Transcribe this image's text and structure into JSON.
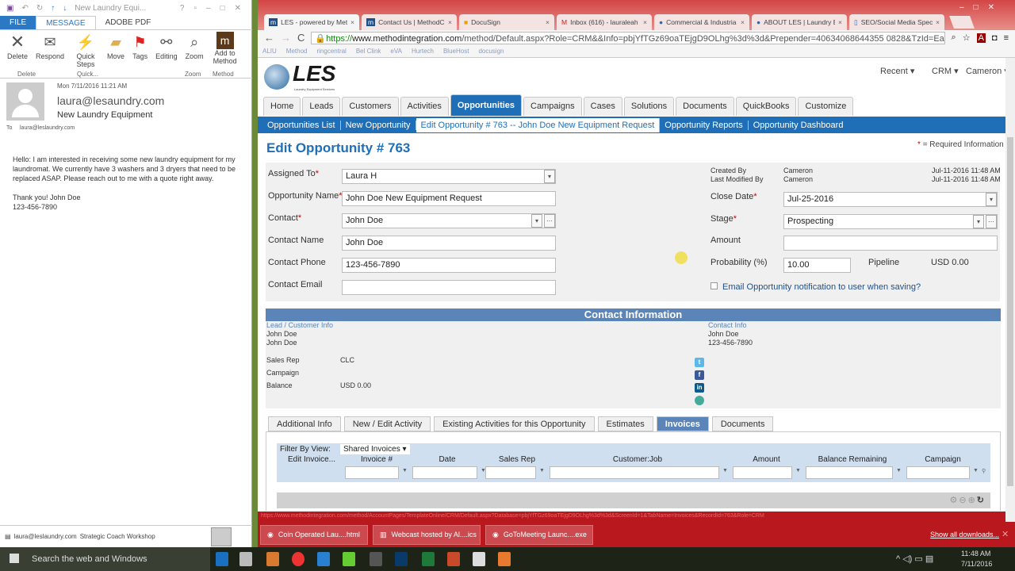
{
  "outlook": {
    "title": "New Laundry Equi...",
    "tabs": [
      "FILE",
      "MESSAGE",
      "ADOBE PDF"
    ],
    "ribbon": [
      {
        "label": "Delete",
        "icon": "delete-x-icon"
      },
      {
        "label": "Respond",
        "icon": "respond-icon"
      },
      {
        "label": "Quick Steps",
        "icon": "lightning-icon"
      },
      {
        "label": "Move",
        "icon": "folder-icon"
      },
      {
        "label": "Tags",
        "icon": "flag-icon"
      },
      {
        "label": "Editing",
        "icon": "binoculars-icon"
      },
      {
        "label": "Zoom",
        "icon": "magnifier-icon"
      },
      {
        "label": "Add to Method",
        "icon": "method-logo-icon"
      }
    ],
    "groups": [
      "Delete",
      "Quick...",
      "Zoom",
      "Method"
    ],
    "date": "Mon 7/11/2016 11:21 AM",
    "from": "laura@lesaundry.com",
    "subject": "New Laundry Equipment",
    "to_label": "To",
    "to": "laura@leslaundry.com",
    "body": "Hello: I am interested in receiving some new laundry equipment for my laundromat. We currently have 3 washers and 3 dryers that need to be replaced ASAP. Please reach out to me with a quote right away.\n\nThank you! John Doe\n123-456-7890",
    "footer_email": "laura@leslaundry.com",
    "footer_text": "Strategic Coach Workshop"
  },
  "browser": {
    "tabs": [
      "LES - powered by Meth",
      "Contact Us | MethodCR",
      "DocuSign",
      "Inbox (616) - lauraleah",
      "Commercial & Industria",
      "ABOUT LES | Laundry Eq",
      "SEO/Social Media Spec"
    ],
    "url_scheme": "https://",
    "url_domain": "www.methodintegration.com",
    "url_path": "/method/Default.aspx?Role=CRM&&Info=pbjYfTGz69oaTEjgD9OLhg%3d%3d&Prepender=40634068644355 0828&TzId=Eastern",
    "bookmarks": [
      "ALIU",
      "Method",
      "ringcentral",
      "Bel Clink",
      "eVA",
      "Hurtech",
      "BlueHost",
      "docusign"
    ],
    "status_url": "https://www.methodintegration.com/method/AccountPages/TemplateOnline/CRM/Default.aspx?Database=pbjYfTGz69oaTEjgD9OLhg%3d%3d&ScreenId=1&TabName=Invoices&RecordId=763&Role=CRM",
    "downloads": [
      "Coin Operated Lau....html",
      "Webcast hosted by Al....ics",
      "GoToMeeting Launc....exe"
    ],
    "show_all": "Show all downloads..."
  },
  "app": {
    "logo": "LES",
    "logo_sub": "Laundry Equipment Services",
    "top_links": [
      "Recent",
      "CRM",
      "Cameron"
    ],
    "nav": [
      "Home",
      "Leads",
      "Customers",
      "Activities",
      "Opportunities",
      "Campaigns",
      "Cases",
      "Solutions",
      "Documents",
      "QuickBooks",
      "Customize"
    ],
    "subnav": [
      "Opportunities List",
      "New Opportunity",
      "Edit Opportunity # 763 -- John Doe New Equipment Request",
      "Opportunity Reports",
      "Opportunity Dashboard"
    ],
    "title": "Edit Opportunity # 763",
    "required_note": "= Required Information",
    "req_star": "*",
    "form": {
      "assigned_to": {
        "label": "Assigned To",
        "value": "Laura H"
      },
      "opp_name": {
        "label": "Opportunity Name",
        "value": "John Doe New Equipment Request"
      },
      "contact": {
        "label": "Contact",
        "value": "John Doe"
      },
      "contact_name": {
        "label": "Contact Name",
        "value": "John Doe"
      },
      "contact_phone": {
        "label": "Contact Phone",
        "value": "123-456-7890"
      },
      "contact_email": {
        "label": "Contact Email",
        "value": ""
      },
      "created_by_label": "Created By",
      "created_by": "Cameron",
      "created_at": "Jul-11-2016 11:48 AM",
      "modified_by_label": "Last Modified By",
      "modified_by": "Cameron",
      "modified_at": "Jul-11-2016 11:48 AM",
      "close_date": {
        "label": "Close Date",
        "value": "Jul-25-2016"
      },
      "stage": {
        "label": "Stage",
        "value": "Prospecting"
      },
      "amount": {
        "label": "Amount",
        "value": ""
      },
      "probability": {
        "label": "Probability (%)",
        "value": "10.00"
      },
      "pipeline_label": "Pipeline",
      "pipeline": "USD 0.00",
      "email_notify": "Email Opportunity notification to user when saving?"
    },
    "contact_info": {
      "header": "Contact Information",
      "lead_label": "Lead / Customer Info",
      "lead1": "John Doe",
      "lead2": "John Doe",
      "sales_rep_label": "Sales Rep",
      "sales_rep": "CLC",
      "campaign_label": "Campaign",
      "campaign": "",
      "balance_label": "Balance",
      "balance": "USD 0.00",
      "contact_label": "Contact Info",
      "contact_name": "John Doe",
      "contact_phone": "123-456-7890"
    },
    "bottom_tabs": [
      "Additional Info",
      "New / Edit Activity",
      "Existing Activities for this Opportunity",
      "Estimates",
      "Invoices",
      "Documents"
    ],
    "grid": {
      "filter_label": "Filter By View:",
      "filter_value": "Shared Invoices",
      "columns": [
        "Edit Invoice...",
        "Invoice #",
        "Date",
        "Sales Rep",
        "Customer:Job",
        "Amount",
        "Balance Remaining",
        "Campaign"
      ]
    }
  },
  "taskbar": {
    "search": "Search the web and Windows",
    "time": "11:48 AM",
    "date": "7/11/2016"
  }
}
